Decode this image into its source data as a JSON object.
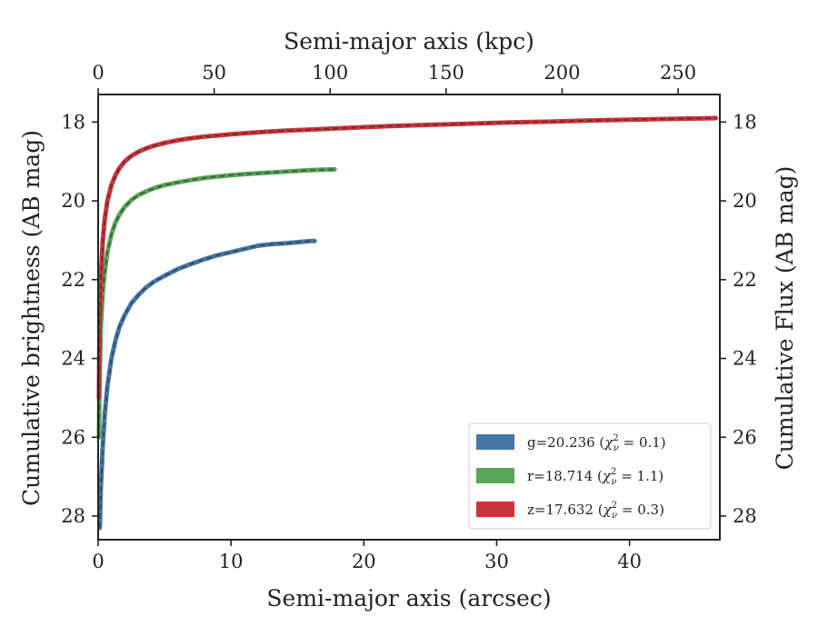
{
  "chart_data": {
    "type": "line",
    "xlabel": "Semi-major axis (arcsec)",
    "ylabel": "Cumulative brightness (AB mag)",
    "x2label": "Semi-major axis (kpc)",
    "y2label": "Cumulative Flux (AB mag)",
    "xlim": [
      0,
      46.8
    ],
    "ylim": [
      28.6,
      17.3
    ],
    "x2lim": [
      0,
      268
    ],
    "y_inverted": true,
    "xticks": [
      0,
      10,
      20,
      30,
      40
    ],
    "yticks": [
      18,
      20,
      22,
      24,
      26,
      28
    ],
    "x2ticks": [
      0,
      50,
      100,
      150,
      200,
      250
    ],
    "legend_position": "lower-right",
    "grid": false,
    "series": [
      {
        "name": "g=20.236 (χ²ν = 0.1)",
        "legend_main": "g=20.236 (",
        "legend_tail": " = 0.1)",
        "color": "#4477a6",
        "x": [
          0.12,
          0.2,
          0.35,
          0.5,
          0.7,
          1.0,
          1.3,
          1.6,
          2.0,
          2.5,
          3.0,
          3.6,
          4.2,
          5.0,
          6.0,
          7.0,
          8.0,
          9.0,
          10.0,
          11.0,
          12.0,
          13.0,
          14.0,
          15.0,
          16.0,
          16.3
        ],
        "y": [
          28.3,
          27.3,
          26.2,
          25.4,
          24.7,
          24.0,
          23.55,
          23.2,
          22.9,
          22.6,
          22.4,
          22.2,
          22.05,
          21.9,
          21.73,
          21.6,
          21.48,
          21.38,
          21.3,
          21.22,
          21.14,
          21.1,
          21.08,
          21.05,
          21.02,
          21.02
        ]
      },
      {
        "name": "r=18.714 (χ²ν = 1.1)",
        "legend_main": "r=18.714 (",
        "legend_tail": " = 1.1)",
        "color": "#5aa556",
        "x": [
          0.06,
          0.1,
          0.2,
          0.35,
          0.5,
          0.7,
          1.0,
          1.3,
          1.6,
          2.0,
          2.5,
          3.0,
          3.6,
          4.2,
          5.0,
          6.0,
          7.0,
          8.0,
          9.0,
          10.0,
          11.0,
          12.0,
          13.0,
          14.0,
          15.0,
          16.0,
          17.0,
          17.8
        ],
        "y": [
          26.0,
          24.6,
          23.2,
          22.3,
          21.8,
          21.3,
          20.85,
          20.55,
          20.35,
          20.15,
          19.98,
          19.86,
          19.76,
          19.68,
          19.6,
          19.53,
          19.47,
          19.42,
          19.38,
          19.35,
          19.32,
          19.3,
          19.28,
          19.26,
          19.24,
          19.22,
          19.21,
          19.2
        ]
      },
      {
        "name": "z=17.632 (χ²ν = 0.3)",
        "legend_main": "z=17.632 (",
        "legend_tail": " = 0.3)",
        "color": "#cc3338",
        "x": [
          0.06,
          0.1,
          0.2,
          0.35,
          0.5,
          0.7,
          1.0,
          1.3,
          1.6,
          2.0,
          2.5,
          3.0,
          3.6,
          4.2,
          5.0,
          6.0,
          7.0,
          8.0,
          9.0,
          10.0,
          12.0,
          14.0,
          16.0,
          18.0,
          20.0,
          22.0,
          25.0,
          28.0,
          31.0,
          34.0,
          37.0,
          40.0,
          43.0,
          46.5
        ],
        "y": [
          25.0,
          23.3,
          22.0,
          21.0,
          20.45,
          20.0,
          19.6,
          19.35,
          19.17,
          19.0,
          18.86,
          18.76,
          18.67,
          18.6,
          18.53,
          18.46,
          18.41,
          18.37,
          18.34,
          18.31,
          18.26,
          18.22,
          18.19,
          18.16,
          18.13,
          18.1,
          18.07,
          18.04,
          18.01,
          17.99,
          17.96,
          17.94,
          17.92,
          17.9
        ]
      }
    ]
  }
}
